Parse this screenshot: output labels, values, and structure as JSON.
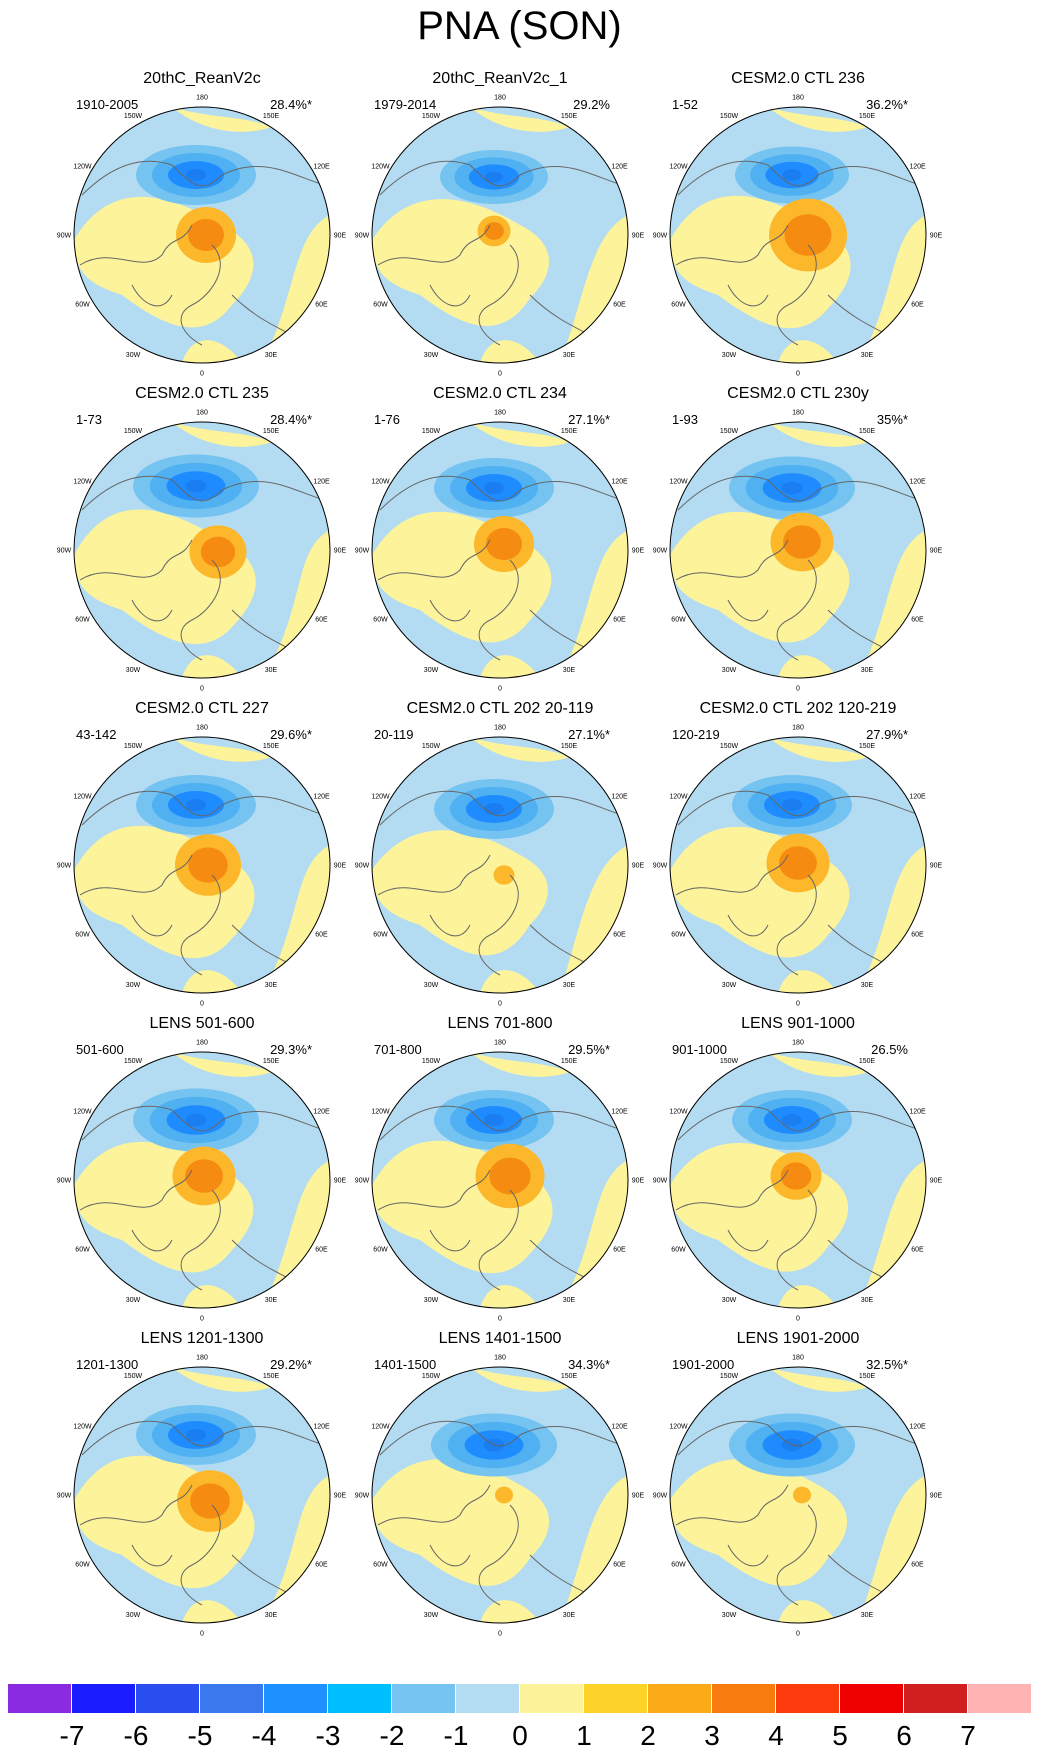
{
  "title": "PNA (SON)",
  "colors": {
    "blue_strong": "#1e8cff",
    "blue_mid": "#75c3f0",
    "blue_light": "#b3dcf2",
    "yellow": "#fcf39a",
    "orange_light": "#fcb72a",
    "orange_strong": "#f58b11",
    "coast": "#666666"
  },
  "longitude_labels": [
    "180",
    "150E",
    "120E",
    "90E",
    "60E",
    "30E",
    "0",
    "30W",
    "60W",
    "90W",
    "120W",
    "150W"
  ],
  "panels": [
    {
      "title": "20thC_ReanV2c",
      "period": "1910-2005",
      "variance": "28.4%*"
    },
    {
      "title": "20thC_ReanV2c_1",
      "period": "1979-2014",
      "variance": "29.2%"
    },
    {
      "title": "CESM2.0 CTL 236",
      "period": "1-52",
      "variance": "36.2%*"
    },
    {
      "title": "CESM2.0 CTL 235",
      "period": "1-73",
      "variance": "28.4%*"
    },
    {
      "title": "CESM2.0 CTL 234",
      "period": "1-76",
      "variance": "27.1%*"
    },
    {
      "title": "CESM2.0 CTL 230y",
      "period": "1-93",
      "variance": "35%*"
    },
    {
      "title": "CESM2.0 CTL 227",
      "period": "43-142",
      "variance": "29.6%*"
    },
    {
      "title": "CESM2.0 CTL 202 20-119",
      "period": "20-119",
      "variance": "27.1%*"
    },
    {
      "title": "CESM2.0 CTL 202 120-219",
      "period": "120-219",
      "variance": "27.9%*"
    },
    {
      "title": "LENS 501-600",
      "period": "501-600",
      "variance": "29.3%*"
    },
    {
      "title": "LENS 701-800",
      "period": "701-800",
      "variance": "29.5%*"
    },
    {
      "title": "LENS 901-1000",
      "period": "901-1000",
      "variance": "26.5%"
    },
    {
      "title": "LENS 1201-1300",
      "period": "1201-1300",
      "variance": "29.2%*"
    },
    {
      "title": "LENS 1401-1500",
      "period": "1401-1500",
      "variance": "34.3%*"
    },
    {
      "title": "LENS 1901-2000",
      "period": "1901-2000",
      "variance": "32.5%*"
    }
  ],
  "colorbar": {
    "labels": [
      "-7",
      "-6",
      "-5",
      "-4",
      "-3",
      "-2",
      "-1",
      "0",
      "1",
      "2",
      "3",
      "4",
      "5",
      "6",
      "7"
    ],
    "colors": [
      "#8a2be2",
      "#1b1cff",
      "#2b4ef0",
      "#3a78ee",
      "#1e90ff",
      "#00bfff",
      "#75c3f0",
      "#b3dcf2",
      "#fcf39a",
      "#fdd32a",
      "#fbab18",
      "#f87b10",
      "#fb3b0c",
      "#ee0000",
      "#d01f1f",
      "#ffb3b3"
    ]
  }
}
